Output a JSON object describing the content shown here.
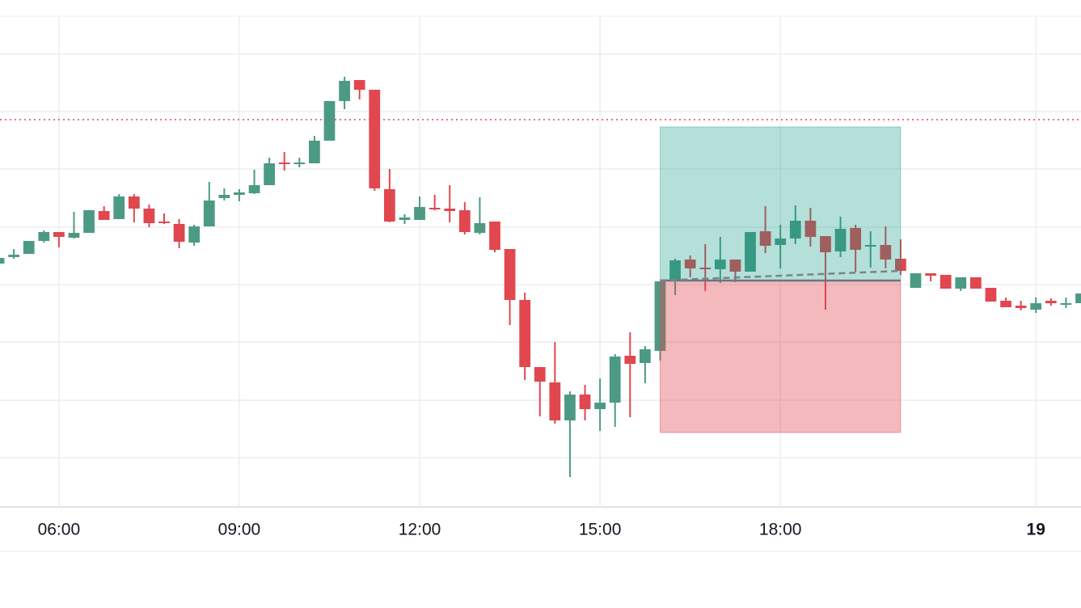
{
  "chart_data": {
    "type": "candlestick",
    "x": [
      5.0,
      5.25,
      5.5,
      5.75,
      6.0,
      6.25,
      6.5,
      6.75,
      7.0,
      7.25,
      7.5,
      7.75,
      8.0,
      8.25,
      8.5,
      8.75,
      9.0,
      9.25,
      9.5,
      9.75,
      10.0,
      10.25,
      10.5,
      10.75,
      11.0,
      11.25,
      11.5,
      11.75,
      12.0,
      12.25,
      12.5,
      12.75,
      13.0,
      13.25,
      13.5,
      13.75,
      14.0,
      14.25,
      14.5,
      14.75,
      15.0,
      15.25,
      15.5,
      15.75,
      16.0,
      16.25,
      16.5,
      16.75,
      17.0,
      17.25,
      17.5,
      17.75,
      18.0,
      18.25,
      18.5,
      18.75,
      19.0,
      19.25,
      19.5,
      19.75,
      20.0,
      20.25,
      20.5,
      20.75,
      21.0,
      21.25,
      21.5,
      21.75,
      22.0,
      22.25,
      22.5,
      22.75,
      23.0
    ],
    "open": [
      301,
      309,
      313,
      329,
      340,
      333,
      339,
      366,
      356,
      384,
      369,
      353,
      350,
      327,
      347,
      382,
      386,
      388,
      398,
      426,
      424,
      425,
      453,
      502,
      528,
      516,
      393,
      355,
      355,
      370,
      369,
      367,
      339,
      353,
      319,
      256,
      173,
      154,
      107,
      139,
      121,
      129,
      187,
      178,
      193,
      279,
      306,
      296,
      294,
      306,
      291,
      341,
      324,
      332,
      354,
      335,
      316,
      345,
      322,
      324,
      307,
      271,
      289,
      287,
      270,
      284,
      271,
      255,
      249,
      244,
      255,
      250,
      252
    ],
    "high": [
      308,
      319,
      329,
      342,
      340,
      365,
      367,
      372,
      387,
      387,
      374,
      363,
      356,
      349,
      402,
      394,
      393,
      417,
      432,
      439,
      432,
      459,
      502,
      532,
      528,
      516,
      418,
      362,
      384,
      386,
      398,
      377,
      383,
      353,
      319,
      265,
      173,
      204,
      143,
      151,
      159,
      189,
      216,
      199,
      279,
      307,
      311,
      325,
      334,
      306,
      340,
      372,
      349,
      373,
      370,
      335,
      359,
      349,
      341,
      347,
      331,
      289,
      289,
      287,
      284,
      284,
      271,
      259,
      255,
      259,
      258,
      259,
      264
    ],
    "low": [
      301,
      307,
      313,
      327,
      321,
      332,
      339,
      355,
      356,
      352,
      346,
      350,
      320,
      323,
      347,
      379,
      378,
      387,
      398,
      416,
      420,
      425,
      453,
      492,
      504,
      391,
      352,
      350,
      355,
      367,
      352,
      337,
      337,
      315,
      225,
      157,
      112,
      103,
      37,
      107,
      94,
      99,
      111,
      153,
      181,
      262,
      284,
      267,
      277,
      278,
      291,
      314,
      295,
      325,
      322,
      244,
      309,
      291,
      296,
      295,
      287,
      271,
      279,
      270,
      267,
      270,
      254,
      247,
      243,
      240,
      249,
      246,
      252
    ],
    "close": [
      308,
      312,
      329,
      340,
      334,
      339,
      367,
      355,
      384,
      369,
      351,
      351,
      328,
      347,
      379,
      386,
      389,
      398,
      425,
      424,
      426,
      453,
      502,
      527,
      516,
      394,
      353,
      358,
      371,
      368,
      366,
      340,
      351,
      318,
      256,
      173,
      155,
      107,
      139,
      121,
      129,
      186,
      177,
      195,
      279,
      305,
      295,
      294,
      306,
      291,
      340,
      323,
      332,
      354,
      334,
      315,
      344,
      318,
      324,
      306,
      292,
      289,
      286,
      270,
      284,
      270,
      254,
      247,
      246,
      252,
      252,
      252,
      264
    ],
    "xlim": [
      5.02,
      23.0
    ],
    "ylim": [
      0,
      627
    ],
    "xticks": [
      {
        "value": 6,
        "label": "06:00"
      },
      {
        "value": 9,
        "label": "09:00"
      },
      {
        "value": 12,
        "label": "12:00"
      },
      {
        "value": 15,
        "label": "15:00"
      },
      {
        "value": 18,
        "label": "18:00"
      },
      {
        "value": 22.25,
        "label": "19"
      }
    ],
    "yticks": [
      61,
      132,
      204,
      275,
      346,
      418,
      489,
      560
    ],
    "grid": true,
    "up_color": "#4c9a84",
    "down_color": "#e0474f",
    "price_line": 479,
    "position": {
      "start": 16.0,
      "end": 20.0,
      "entry": 280,
      "target": 470,
      "stop": 92
    }
  }
}
